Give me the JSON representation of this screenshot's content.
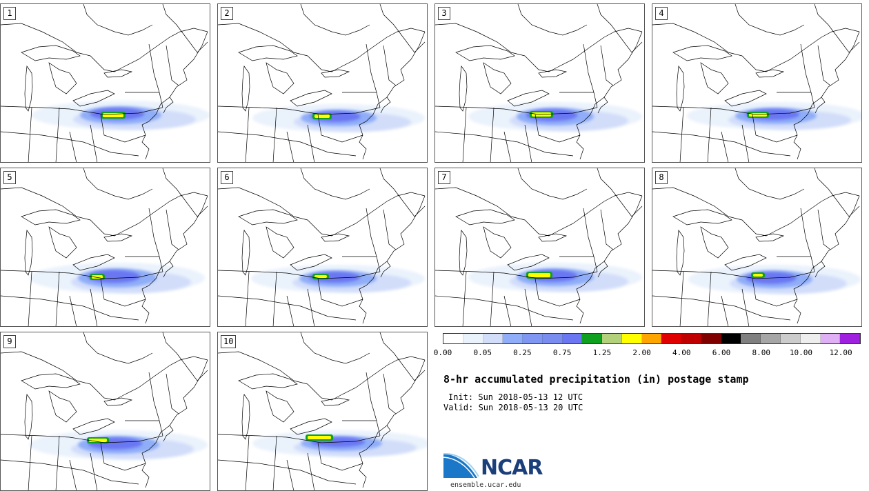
{
  "panels": [
    {
      "label": "1",
      "blob": [
        115,
        148,
        118,
        26
      ],
      "core": [
        148,
        158,
        30,
        6
      ]
    },
    {
      "label": "2",
      "blob": [
        120,
        153,
        110,
        24
      ],
      "core": [
        140,
        160,
        22,
        5
      ]
    },
    {
      "label": "3",
      "blob": [
        118,
        150,
        112,
        26
      ],
      "core": [
        140,
        157,
        28,
        6
      ]
    },
    {
      "label": "4",
      "blob": [
        120,
        150,
        118,
        24
      ],
      "core": [
        140,
        158,
        26,
        5
      ]
    },
    {
      "label": "5",
      "blob": [
        112,
        145,
        114,
        28
      ],
      "core": [
        132,
        155,
        16,
        5
      ]
    },
    {
      "label": "6",
      "blob": [
        118,
        148,
        112,
        24
      ],
      "core": [
        140,
        155,
        18,
        4
      ]
    },
    {
      "label": "7",
      "blob": [
        118,
        145,
        112,
        26
      ],
      "core": [
        135,
        152,
        32,
        6
      ]
    },
    {
      "label": "8",
      "blob": [
        122,
        148,
        110,
        26
      ],
      "core": [
        146,
        153,
        14,
        4
      ]
    },
    {
      "label": "9",
      "blob": [
        112,
        150,
        118,
        26
      ],
      "core": [
        128,
        154,
        26,
        5
      ]
    },
    {
      "label": "10",
      "blob": [
        120,
        150,
        118,
        22
      ],
      "core": [
        130,
        150,
        34,
        5
      ]
    }
  ],
  "colorbar": {
    "colors": [
      "#ffffff",
      "#eaf2fc",
      "#d2ddfa",
      "#8fadf8",
      "#7f97f2",
      "#7b8cf1",
      "#6b77f2",
      "#0fa020",
      "#b2d17a",
      "#ffff00",
      "#ffa500",
      "#e00000",
      "#c00000",
      "#800000",
      "#000000",
      "#808080",
      "#a6a6a6",
      "#cccccc",
      "#eeeeee",
      "#e0b0f5",
      "#a020e0"
    ],
    "ticks": [
      "0.00",
      "0.05",
      "0.25",
      "0.75",
      "1.25",
      "2.00",
      "4.00",
      "6.00",
      "8.00",
      "10.00",
      "12.00"
    ]
  },
  "title": "8-hr accumulated precipitation (in) postage stamp",
  "init": "Init: Sun 2018-05-13 12 UTC",
  "valid": "Valid: Sun 2018-05-13 20 UTC",
  "logo_text": "NCAR",
  "url": "ensemble.ucar.edu"
}
